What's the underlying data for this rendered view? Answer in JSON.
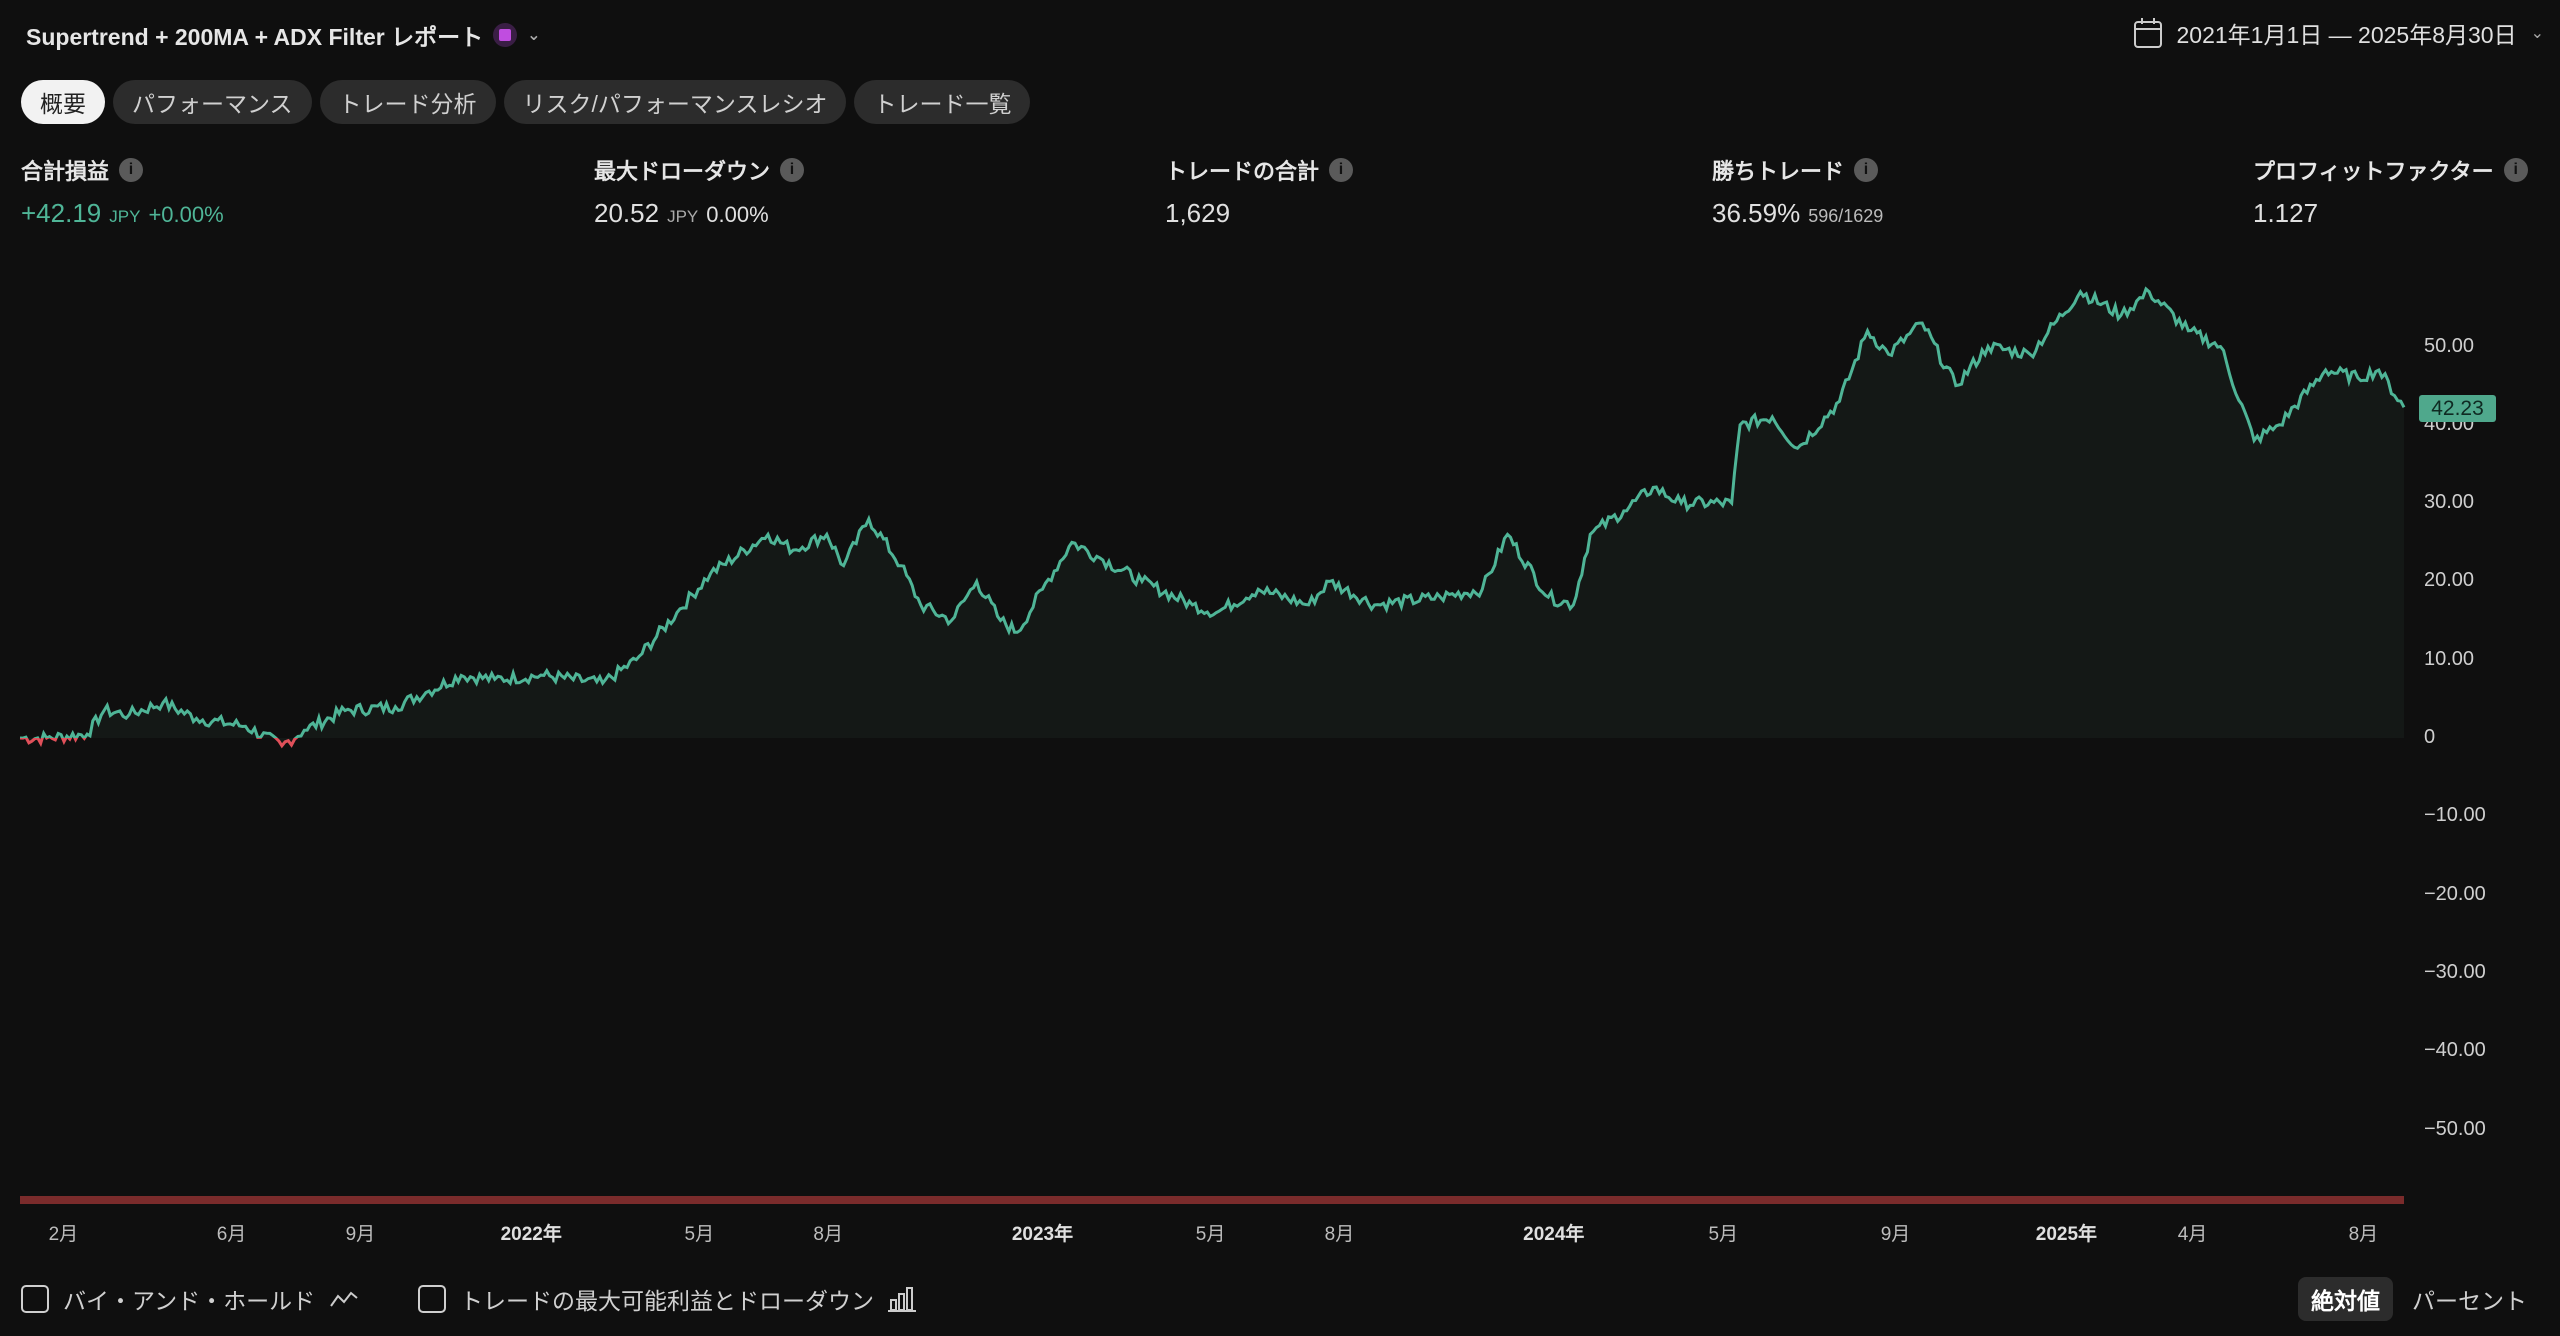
{
  "header": {
    "title": "Supertrend + 200MA + ADX Filter レポート",
    "icon": "calendar-badge-icon",
    "date_range": "2021年1月1日 — 2025年8月30日"
  },
  "tabs": [
    {
      "label": "概要",
      "active": true
    },
    {
      "label": "パフォーマンス"
    },
    {
      "label": "トレード分析"
    },
    {
      "label": "リスク/パフォーマンスレシオ"
    },
    {
      "label": "トレード一覧"
    }
  ],
  "stats": [
    {
      "label": "合計損益",
      "value": "+42.19",
      "unit": "JPY",
      "extra": "+0.00%"
    },
    {
      "label": "最大ドローダウン",
      "value": "20.52",
      "unit": "JPY",
      "extra": "0.00%"
    },
    {
      "label": "トレードの合計",
      "value": "1,629"
    },
    {
      "label": "勝ちトレード",
      "value": "36.59%",
      "extra": "596/1629"
    },
    {
      "label": "プロフィットファクター",
      "value": "1.127"
    }
  ],
  "colors": {
    "positive": "#4fb597",
    "negative": "#e0505a",
    "drawdown_bar": "#7a2b2b",
    "background": "#0f0f0f"
  },
  "chart_data": {
    "type": "line",
    "xlim": [
      "2021-01-01",
      "2025-08-30"
    ],
    "ylim": [
      -58,
      58
    ],
    "yticks": [
      50,
      40,
      30,
      20,
      10,
      0,
      -10,
      -20,
      -30,
      -40,
      -50
    ],
    "ytick_labels": [
      "50.00",
      "40.00",
      "30.00",
      "20.00",
      "10.00",
      "0",
      "−10.00",
      "−20.00",
      "−30.00",
      "−40.00",
      "−50.00"
    ],
    "last_value_label": "42.23",
    "xticks": [
      {
        "date": "2021-02-01",
        "label": "2月"
      },
      {
        "date": "2021-06-01",
        "label": "6月"
      },
      {
        "date": "2021-09-01",
        "label": "9月"
      },
      {
        "date": "2022-01-01",
        "label": "2022年",
        "bold": true
      },
      {
        "date": "2022-05-01",
        "label": "5月"
      },
      {
        "date": "2022-08-01",
        "label": "8月"
      },
      {
        "date": "2023-01-01",
        "label": "2023年",
        "bold": true
      },
      {
        "date": "2023-05-01",
        "label": "5月"
      },
      {
        "date": "2023-08-01",
        "label": "8月"
      },
      {
        "date": "2024-01-01",
        "label": "2024年",
        "bold": true
      },
      {
        "date": "2024-05-01",
        "label": "5月"
      },
      {
        "date": "2024-09-01",
        "label": "9月"
      },
      {
        "date": "2025-01-01",
        "label": "2025年",
        "bold": true
      },
      {
        "date": "2025-04-01",
        "label": "4月"
      },
      {
        "date": "2025-08-01",
        "label": "8月"
      }
    ],
    "points": [
      [
        "2021-01-01",
        0
      ],
      [
        "2021-01-20",
        0
      ],
      [
        "2021-02-18",
        0.5
      ],
      [
        "2021-03-02",
        3.5
      ],
      [
        "2021-03-20",
        3
      ],
      [
        "2021-04-13",
        4.5
      ],
      [
        "2021-05-07",
        2.5
      ],
      [
        "2021-06-11",
        1.5
      ],
      [
        "2021-07-07",
        -1
      ],
      [
        "2021-07-23",
        1
      ],
      [
        "2021-08-21",
        3.5
      ],
      [
        "2021-09-26",
        4
      ],
      [
        "2021-10-20",
        6
      ],
      [
        "2021-11-12",
        8
      ],
      [
        "2021-12-06",
        7.5
      ],
      [
        "2022-01-10",
        8
      ],
      [
        "2022-02-21",
        7
      ],
      [
        "2022-03-17",
        10
      ],
      [
        "2022-04-15",
        16
      ],
      [
        "2022-05-09",
        21
      ],
      [
        "2022-06-19",
        26
      ],
      [
        "2022-07-07",
        24
      ],
      [
        "2022-07-31",
        26
      ],
      [
        "2022-08-12",
        22
      ],
      [
        "2022-08-30",
        28
      ],
      [
        "2022-09-22",
        22
      ],
      [
        "2022-10-06",
        17
      ],
      [
        "2022-10-28",
        15
      ],
      [
        "2022-11-15",
        20
      ],
      [
        "2022-12-02",
        15
      ],
      [
        "2022-12-14",
        13.5
      ],
      [
        "2023-01-01",
        19
      ],
      [
        "2023-01-22",
        25
      ],
      [
        "2023-02-11",
        23
      ],
      [
        "2023-03-13",
        20
      ],
      [
        "2023-04-18",
        17
      ],
      [
        "2023-05-05",
        16
      ],
      [
        "2023-06-04",
        19
      ],
      [
        "2023-07-10",
        17
      ],
      [
        "2023-07-25",
        20
      ],
      [
        "2023-08-26",
        17
      ],
      [
        "2023-10-12",
        18
      ],
      [
        "2023-11-11",
        19
      ],
      [
        "2023-11-29",
        26
      ],
      [
        "2023-12-28",
        18
      ],
      [
        "2024-01-15",
        17
      ],
      [
        "2024-01-27",
        26
      ],
      [
        "2024-02-20",
        29
      ],
      [
        "2024-03-12",
        32
      ],
      [
        "2024-04-01",
        30
      ],
      [
        "2024-05-07",
        30
      ],
      [
        "2024-05-13",
        40
      ],
      [
        "2024-06-05",
        41
      ],
      [
        "2024-06-23",
        37
      ],
      [
        "2024-07-23",
        43
      ],
      [
        "2024-08-12",
        52
      ],
      [
        "2024-08-27",
        49
      ],
      [
        "2024-09-20",
        53
      ],
      [
        "2024-10-14",
        45
      ],
      [
        "2024-11-06",
        50
      ],
      [
        "2024-12-06",
        49
      ],
      [
        "2025-01-11",
        57
      ],
      [
        "2025-02-09",
        54
      ],
      [
        "2025-03-01",
        57
      ],
      [
        "2025-03-29",
        52
      ],
      [
        "2025-04-21",
        50
      ],
      [
        "2025-05-15",
        38
      ],
      [
        "2025-06-02",
        40
      ],
      [
        "2025-07-05",
        47
      ],
      [
        "2025-07-28",
        46
      ],
      [
        "2025-08-12",
        47
      ],
      [
        "2025-08-30",
        42.23
      ]
    ]
  },
  "footer": {
    "buy_hold": "バイ・アンド・ホールド",
    "max_profit_dd": "トレードの最大可能利益とドローダウン",
    "absolute": "絶対値",
    "percent": "パーセント"
  }
}
